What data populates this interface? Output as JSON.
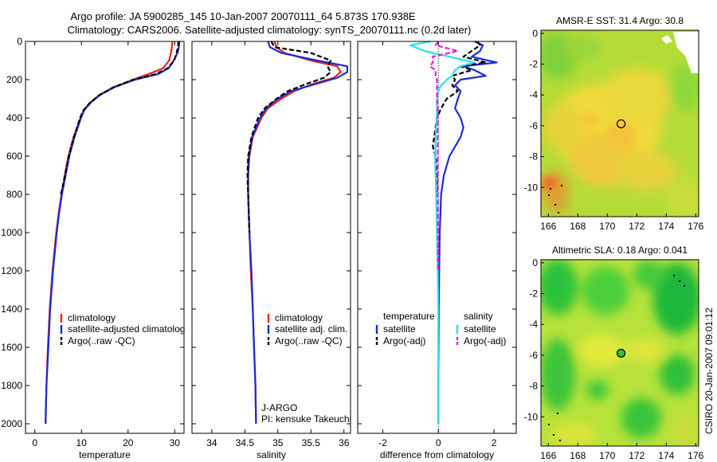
{
  "header": {
    "line1": "Argo profile: JA 5900285_145 10-Jan-2007 20070111_64 5.873S 170.938E",
    "line2": "Climatology: CARS2006. Satellite-adjusted climatology: synTS_20070111.nc (0.2d later)"
  },
  "side_label": "CSIRO 20-Jan-2007 09:01:12",
  "colors": {
    "climatology": "#e8231e",
    "satellite": "#1a2bd6",
    "argo": "#000000",
    "satellite_diff": "#29e0e6",
    "argo_diff": "#e21ce6"
  },
  "chart_data": [
    {
      "type": "line",
      "id": "temperature",
      "xlabel": "temperature",
      "ylabel": "",
      "xlim": [
        -2,
        32
      ],
      "ylim": [
        2050,
        0
      ],
      "xticks": [
        "0",
        "10",
        "20",
        "30"
      ],
      "xtick_values": [
        0,
        10,
        20,
        30
      ],
      "yticks": [
        "0",
        "200",
        "400",
        "600",
        "800",
        "1000",
        "1200",
        "1400",
        "1600",
        "1800",
        "2000"
      ],
      "ytick_values": [
        0,
        200,
        400,
        600,
        800,
        1000,
        1200,
        1400,
        1600,
        1800,
        2000
      ],
      "depth": [
        0,
        30,
        60,
        100,
        140,
        170,
        200,
        240,
        280,
        320,
        360,
        400,
        500,
        600,
        700,
        800,
        900,
        1000,
        1200,
        1400,
        1600,
        1800,
        2000
      ],
      "series": [
        {
          "name": "climatology",
          "color": "#e8231e",
          "values": [
            29.5,
            29.4,
            29.2,
            28.8,
            27.5,
            24.5,
            21,
            16.8,
            13.8,
            11.8,
            10.5,
            9.8,
            8.3,
            7.2,
            6.4,
            5.7,
            5.1,
            4.6,
            3.8,
            3.2,
            2.8,
            2.5,
            2.3
          ]
        },
        {
          "name": "satellite-adjusted climatology",
          "color": "#1a2bd6",
          "values": [
            31,
            30.9,
            30.6,
            29.8,
            28.7,
            26.5,
            21.5,
            17,
            14,
            12,
            10.6,
            9.9,
            8.5,
            7.4,
            6.6,
            5.8,
            5.2,
            4.7,
            3.9,
            3.3,
            2.9,
            2.5,
            2.3
          ]
        },
        {
          "name": "Argo(..raw -QC)",
          "color": "#000000",
          "dashed": true,
          "values": [
            30.8,
            30.7,
            30.4,
            29.9,
            28.5,
            26,
            21.2,
            16.9,
            13.9,
            11.9,
            10.4,
            9.7,
            8.4,
            7.3,
            6.5,
            5.6,
            null,
            null,
            null,
            null,
            null,
            null,
            null
          ]
        }
      ],
      "legend": [
        "climatology",
        "satellite-adjusted climatolog",
        "Argo(..raw -QC)"
      ]
    },
    {
      "type": "line",
      "id": "salinity",
      "xlabel": "salinity",
      "xlim": [
        33.7,
        36.1
      ],
      "ylim": [
        2050,
        0
      ],
      "xticks": [
        "34",
        "34.5",
        "35",
        "35.5",
        "36"
      ],
      "xtick_values": [
        34,
        34.5,
        35,
        35.5,
        36
      ],
      "depth": [
        0,
        30,
        60,
        100,
        130,
        160,
        190,
        220,
        260,
        300,
        350,
        400,
        500,
        600,
        700,
        800,
        1000,
        1200,
        1400,
        1600,
        1800,
        2000
      ],
      "series": [
        {
          "name": "climatology",
          "color": "#e8231e",
          "values": [
            34.95,
            34.98,
            35.1,
            35.5,
            35.9,
            35.95,
            35.85,
            35.55,
            35.25,
            35.05,
            34.85,
            34.75,
            34.62,
            34.57,
            34.55,
            34.55,
            34.57,
            34.59,
            34.62,
            34.64,
            34.66,
            34.67
          ]
        },
        {
          "name": "satellite adj. clim.",
          "color": "#1a2bd6",
          "values": [
            34.85,
            34.88,
            35.05,
            35.6,
            36.05,
            36.05,
            35.9,
            35.6,
            35.2,
            35.0,
            34.82,
            34.73,
            34.61,
            34.56,
            34.55,
            34.55,
            34.57,
            34.6,
            34.62,
            34.64,
            34.66,
            34.67
          ]
        },
        {
          "name": "Argo(..raw -QC)",
          "color": "#000000",
          "dashed": true,
          "values": [
            34.9,
            34.95,
            35.5,
            35.8,
            35.75,
            35.8,
            35.7,
            35.45,
            35.15,
            34.98,
            34.8,
            34.7,
            34.6,
            34.55,
            34.54,
            34.55,
            34.57,
            null,
            null,
            null,
            null,
            null
          ]
        }
      ],
      "legend": [
        "climatology",
        "satellite adj. clim.",
        "Argo(..raw -QC)"
      ],
      "annotation": [
        "J-ARGO",
        "PI: kensuke Takeuchi"
      ]
    },
    {
      "type": "line",
      "id": "difference",
      "xlabel": "difference from climatology",
      "xlim": [
        -2.9,
        2.8
      ],
      "ylim": [
        2050,
        0
      ],
      "xticks": [
        "-2",
        "0",
        "2"
      ],
      "xtick_values": [
        -2,
        0,
        2
      ],
      "depth": [
        0,
        20,
        50,
        80,
        110,
        130,
        150,
        180,
        200,
        230,
        260,
        300,
        350,
        400,
        450,
        500,
        550,
        600,
        700,
        800,
        1000,
        1200,
        1400,
        1600,
        1800,
        2000
      ],
      "series": [
        {
          "name": "temperature satellite",
          "color": "#1a2bd6",
          "values": [
            1.3,
            1.6,
            1.5,
            1.2,
            2.1,
            0.9,
            1.3,
            1.7,
            0.8,
            0.6,
            0.8,
            0.7,
            0.6,
            0.8,
            0.9,
            0.8,
            0.6,
            0.4,
            0.2,
            0.1,
            0.05,
            0.03,
            0.02,
            0.01,
            0.0,
            0.0
          ]
        },
        {
          "name": "temperature Argo(-adj)",
          "color": "#000000",
          "dashed": true,
          "values": [
            1.4,
            1.5,
            1.2,
            0.9,
            1.7,
            0.8,
            1.2,
            0.5,
            0.6,
            0.5,
            0.7,
            0.3,
            0.1,
            -0.05,
            -0.1,
            -0.15,
            -0.2,
            -0.1,
            -0.05,
            -0.05,
            null,
            null,
            null,
            null,
            null,
            null
          ]
        },
        {
          "name": "salinity satellite",
          "color": "#29e0e6",
          "values": [
            -0.3,
            -1.0,
            -0.5,
            0.4,
            1.3,
            0.8,
            0.6,
            0.5,
            0.3,
            0.1,
            0.0,
            -0.05,
            -0.05,
            -0.05,
            -0.08,
            -0.1,
            -0.1,
            -0.12,
            -0.1,
            -0.08,
            -0.05,
            -0.02,
            0.0,
            0.0,
            0.0,
            0.0
          ]
        },
        {
          "name": "salinity Argo(-adj)",
          "color": "#e21ce6",
          "dashed": true,
          "values": [
            0.0,
            -0.1,
            0.7,
            -0.2,
            -0.2,
            -0.3,
            -0.1,
            -0.1,
            -0.05,
            -0.05,
            -0.05,
            -0.05,
            -0.02,
            -0.02,
            -0.02,
            -0.02,
            -0.02,
            -0.02,
            -0.02,
            -0.02,
            -0.01,
            -0.01,
            null,
            null,
            null,
            null
          ]
        }
      ],
      "legend_left_title": "temperature",
      "legend_right_title": "salinity",
      "legend_left": [
        "satellite",
        "Argo(-adj)"
      ],
      "legend_right": [
        "satellite",
        "Argo(-adj)"
      ]
    },
    {
      "type": "heatmap",
      "id": "sst",
      "title": "AMSR-E SST: 31.4 Argo: 30.8",
      "xlim": [
        165.5,
        176.2
      ],
      "ylim": [
        -11.9,
        0.2
      ],
      "xticks": [
        "166",
        "168",
        "170",
        "172",
        "174",
        "176"
      ],
      "xtick_values": [
        166,
        168,
        170,
        172,
        174,
        176
      ],
      "yticks": [
        "0",
        "-2",
        "-4",
        "-6",
        "-8",
        "-10"
      ],
      "ytick_values": [
        0,
        -2,
        -4,
        -6,
        -8,
        -10
      ],
      "marker": {
        "lon": 170.938,
        "lat": -5.873,
        "filled": false
      }
    },
    {
      "type": "heatmap",
      "id": "sla",
      "title": "Altimetric SLA: 0.18 Argo: 0.041",
      "xlim": [
        165.5,
        176.2
      ],
      "ylim": [
        -11.9,
        0.2
      ],
      "xticks": [
        "166",
        "168",
        "170",
        "172",
        "174",
        "176"
      ],
      "xtick_values": [
        166,
        168,
        170,
        172,
        174,
        176
      ],
      "yticks": [
        "0",
        "-2",
        "-4",
        "-6",
        "-8",
        "-10"
      ],
      "ytick_values": [
        0,
        -2,
        -4,
        -6,
        -8,
        -10
      ],
      "marker": {
        "lon": 170.938,
        "lat": -5.873,
        "filled": true
      }
    }
  ]
}
